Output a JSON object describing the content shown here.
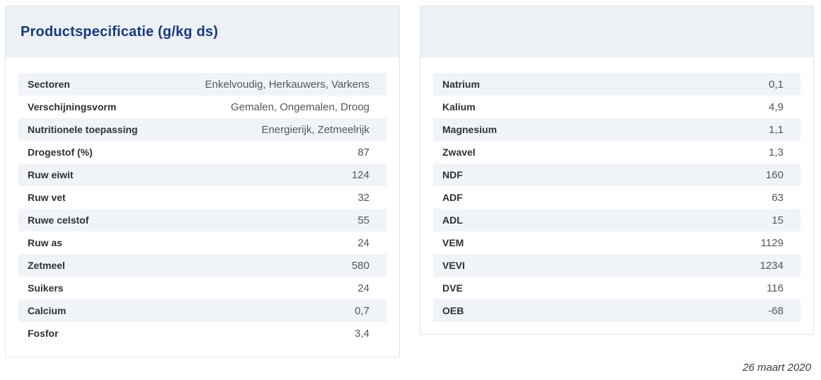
{
  "left_panel": {
    "title": "Productspecificatie (g/kg ds)",
    "rows": [
      {
        "label": "Sectoren",
        "value": "Enkelvoudig, Herkauwers, Varkens"
      },
      {
        "label": "Verschijningsvorm",
        "value": "Gemalen, Ongemalen, Droog"
      },
      {
        "label": "Nutritionele toepassing",
        "value": "Energierijk, Zetmeelrijk"
      },
      {
        "label": "Drogestof (%)",
        "value": "87"
      },
      {
        "label": "Ruw eiwit",
        "value": "124"
      },
      {
        "label": "Ruw vet",
        "value": "32"
      },
      {
        "label": "Ruwe celstof",
        "value": "55"
      },
      {
        "label": "Ruw as",
        "value": "24"
      },
      {
        "label": "Zetmeel",
        "value": "580"
      },
      {
        "label": "Suikers",
        "value": "24"
      },
      {
        "label": "Calcium",
        "value": "0,7"
      },
      {
        "label": "Fosfor",
        "value": "3,4"
      }
    ]
  },
  "right_panel": {
    "rows": [
      {
        "label": "Natrium",
        "value": "0,1"
      },
      {
        "label": "Kalium",
        "value": "4,9"
      },
      {
        "label": "Magnesium",
        "value": "1,1"
      },
      {
        "label": "Zwavel",
        "value": "1,3"
      },
      {
        "label": "NDF",
        "value": "160"
      },
      {
        "label": "ADF",
        "value": "63"
      },
      {
        "label": "ADL",
        "value": "15"
      },
      {
        "label": "VEM",
        "value": "1129"
      },
      {
        "label": "VEVI",
        "value": "1234"
      },
      {
        "label": "DVE",
        "value": "116"
      },
      {
        "label": "OEB",
        "value": "-68"
      }
    ]
  },
  "footer": {
    "date": "26 maart 2020"
  },
  "colors": {
    "title": "#17397c",
    "header_background": "#edf1f6",
    "row_stripe": "#f0f3f7",
    "card_border": "#e1e4e9",
    "label_text": "#2e3135",
    "value_text": "#53565c"
  }
}
